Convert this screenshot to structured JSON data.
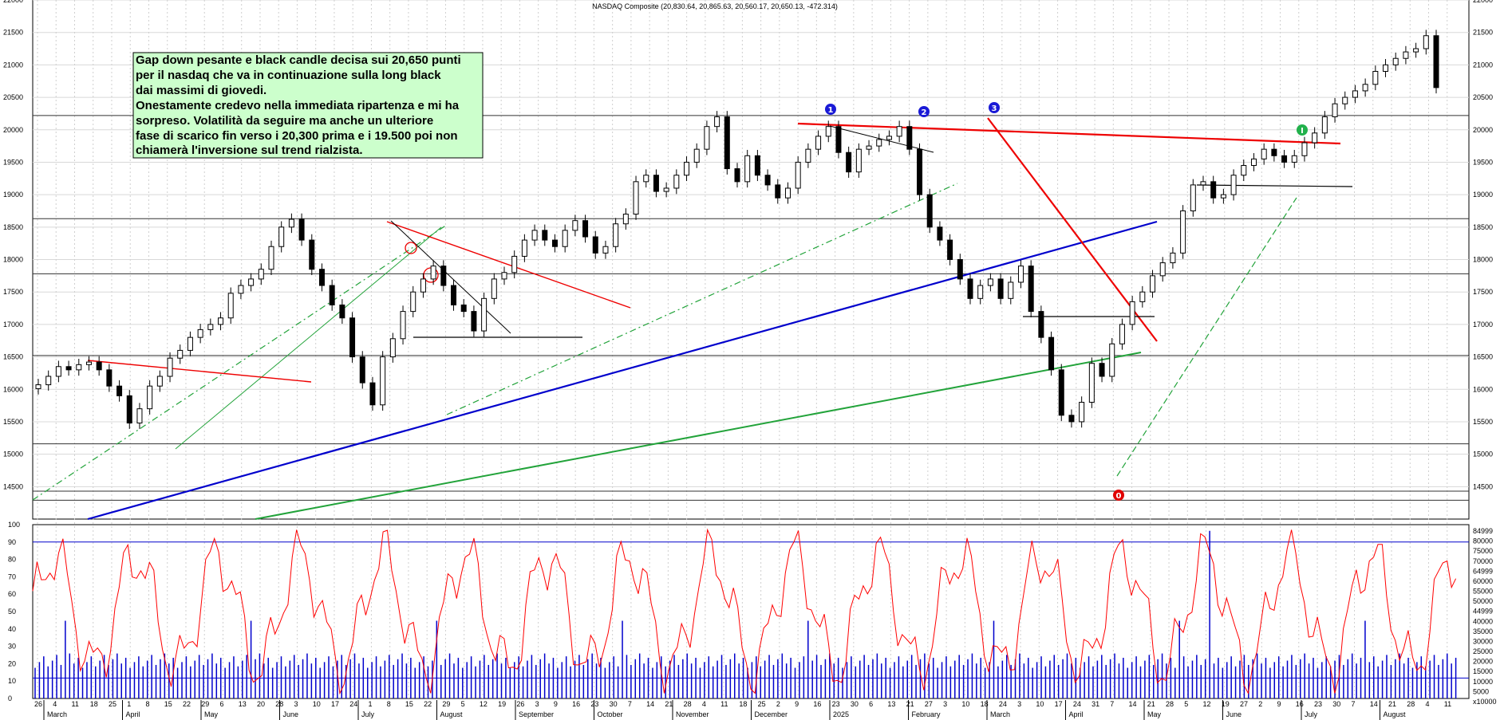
{
  "chart_data": [
    {
      "type": "candlestick",
      "title": "NASDAQ Composite (20,830.64, 20,865.63, 20,560.17, 20,650.13, -472.314)",
      "y_ticks": [
        "14500",
        "15000",
        "15500",
        "16000",
        "16500",
        "17000",
        "17500",
        "18000",
        "18500",
        "19000",
        "19500",
        "20000",
        "20500",
        "21000",
        "21500",
        "22000"
      ],
      "ylim": [
        14000,
        22000
      ],
      "x_day_ticks": [
        "26",
        "4",
        "11",
        "18",
        "25",
        "1",
        "8",
        "15",
        "22",
        "29",
        "6",
        "13",
        "20",
        "28",
        "3",
        "10",
        "17",
        "24",
        "1",
        "8",
        "15",
        "22",
        "29",
        "5",
        "12",
        "19",
        "26",
        "3",
        "9",
        "16",
        "23",
        "30",
        "7",
        "14",
        "21",
        "28",
        "4",
        "11",
        "18",
        "25",
        "2",
        "9",
        "16",
        "23",
        "30",
        "6",
        "13",
        "21",
        "27",
        "3",
        "10",
        "18",
        "24",
        "3",
        "10",
        "17",
        "24",
        "31",
        "7",
        "14",
        "21",
        "28",
        "5",
        "12",
        "19",
        "27",
        "2",
        "9",
        "16",
        "23",
        "30",
        "7",
        "14",
        "21",
        "28",
        "4",
        "11"
      ],
      "x_month_labels": [
        "March",
        "April",
        "May",
        "June",
        "July",
        "August",
        "September",
        "October",
        "November",
        "December",
        "2025",
        "February",
        "March",
        "April",
        "May",
        "June",
        "July",
        "August"
      ],
      "close_series": [
        16070,
        16200,
        16350,
        16300,
        16380,
        16420,
        16300,
        16050,
        15900,
        15480,
        15700,
        16050,
        16200,
        16480,
        16600,
        16800,
        16920,
        17000,
        17100,
        17480,
        17600,
        17700,
        17850,
        18200,
        18500,
        18620,
        18300,
        17850,
        17600,
        17300,
        17100,
        16500,
        16100,
        15760,
        16500,
        16780,
        17200,
        17500,
        17700,
        17900,
        17600,
        17300,
        17200,
        16900,
        17400,
        17700,
        17800,
        18050,
        18300,
        18450,
        18300,
        18200,
        18450,
        18600,
        18350,
        18100,
        18200,
        18550,
        18700,
        19200,
        19300,
        19050,
        19100,
        19300,
        19500,
        19700,
        20050,
        20200,
        19400,
        19200,
        19600,
        19300,
        19150,
        18950,
        19100,
        19500,
        19700,
        19900,
        20050,
        19650,
        19350,
        19700,
        19750,
        19850,
        19900,
        20050,
        19700,
        19000,
        18500,
        18300,
        18000,
        17700,
        17400,
        17600,
        17700,
        17400,
        17650,
        17900,
        17200,
        16800,
        16300,
        15600,
        15500,
        15800,
        16400,
        16200,
        16700,
        17000,
        17350,
        17500,
        17750,
        17950,
        18100,
        18750,
        19150,
        19200,
        18950,
        19000,
        19300,
        19450,
        19550,
        19700,
        19600,
        19500,
        19600,
        19800,
        19950,
        20200,
        20400,
        20500,
        20600,
        20700,
        20900,
        21000,
        21100,
        21200,
        21250,
        21450,
        20650
      ],
      "price_annotations": [
        {
          "label": "0",
          "color": "#e00000"
        },
        {
          "label": "1",
          "color": "#1a1ad6"
        },
        {
          "label": "2",
          "color": "#1a1ad6"
        },
        {
          "label": "3",
          "color": "#1a1ad6"
        },
        {
          "label": "I",
          "color": "#22b14c"
        }
      ],
      "note": [
        "Gap down pesante e black candle decisa sui 20,650 punti",
        "per il nasdaq che va in continuazione sulla long black",
        "dai massimi di giovedi.",
        "Onestamente credevo nella immediata ripartenza e mi ha",
        "sorpreso. Volatilità da seguire ma anche un ulteriore",
        "fase di scarico fin verso i 20,300 prima e i 19.500 poi non",
        "chiamerà l'inversione sul trend rialzista."
      ]
    },
    {
      "type": "line",
      "series_name": "oscillator",
      "y_ticks": [
        "0",
        "10",
        "20",
        "30",
        "40",
        "50",
        "60",
        "70",
        "80",
        "90",
        "100"
      ],
      "ylim": [
        0,
        100
      ],
      "reference_level": 90,
      "series_color": "#ff0000"
    },
    {
      "type": "bar",
      "series_name": "volume",
      "y_ticks": [
        "84999",
        "80000",
        "75000",
        "70000",
        "64999",
        "60000",
        "55000",
        "50000",
        "44999",
        "40000",
        "35000",
        "30000",
        "25000",
        "20000",
        "15000",
        "10000",
        "5000",
        "x10000"
      ],
      "ylim": [
        0,
        85000
      ],
      "reference_level": 10000,
      "series_color": "#0000cc"
    }
  ]
}
